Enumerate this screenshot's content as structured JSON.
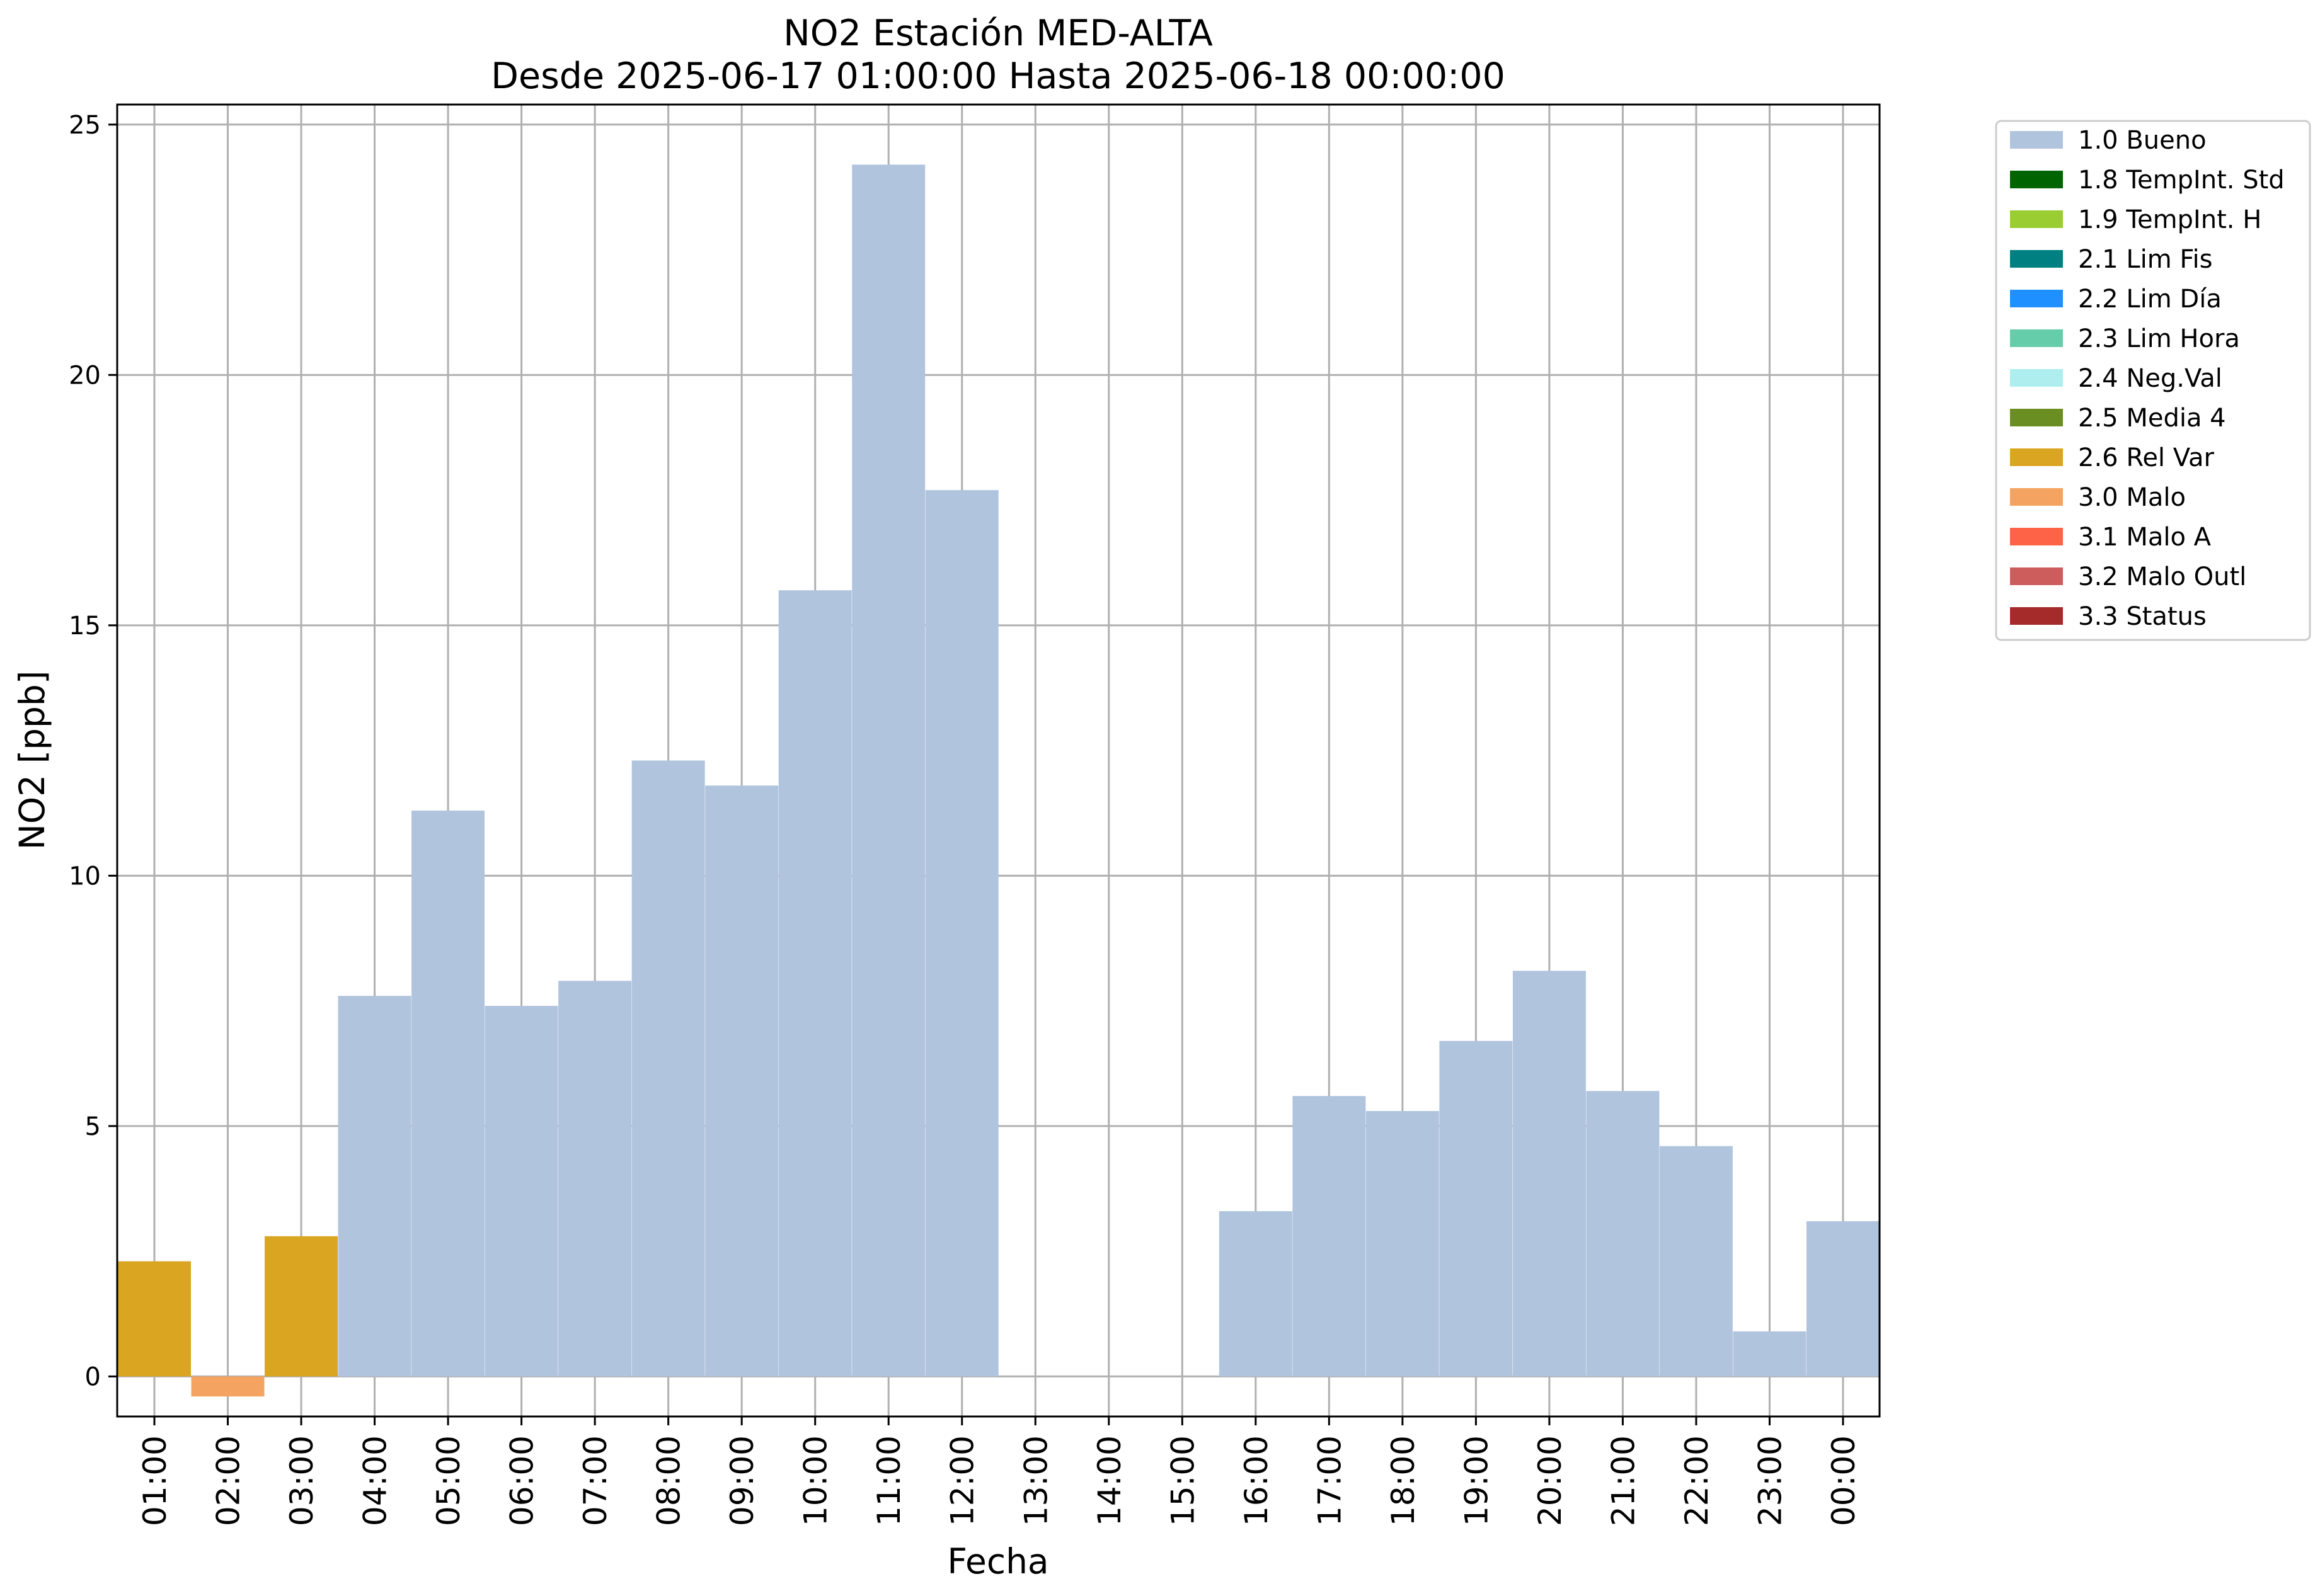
{
  "chart_data": {
    "type": "bar",
    "title": "NO2 Estación MED-ALTA",
    "subtitle": "Desde 2025-06-17 01:00:00 Hasta 2025-06-18 00:00:00",
    "xlabel": "Fecha",
    "ylabel": "NO2 [ppb]",
    "ylim": [
      -0.8,
      25.4
    ],
    "yticks": [
      0,
      5,
      10,
      15,
      20,
      25
    ],
    "grid": true,
    "legend_position": "outside-right",
    "categories": [
      "01:00",
      "02:00",
      "03:00",
      "04:00",
      "05:00",
      "06:00",
      "07:00",
      "08:00",
      "09:00",
      "10:00",
      "11:00",
      "12:00",
      "13:00",
      "14:00",
      "15:00",
      "16:00",
      "17:00",
      "18:00",
      "19:00",
      "20:00",
      "21:00",
      "22:00",
      "23:00",
      "00:00"
    ],
    "values": [
      2.3,
      -0.4,
      2.8,
      7.6,
      11.3,
      7.4,
      7.9,
      12.3,
      11.8,
      15.7,
      24.2,
      17.7,
      null,
      null,
      null,
      3.3,
      5.6,
      5.3,
      6.7,
      8.1,
      5.7,
      4.6,
      0.9,
      3.1
    ],
    "flags": [
      "2.6 Rel Var",
      "3.0 Malo",
      "2.6 Rel Var",
      "1.0 Bueno",
      "1.0 Bueno",
      "1.0 Bueno",
      "1.0 Bueno",
      "1.0 Bueno",
      "1.0 Bueno",
      "1.0 Bueno",
      "1.0 Bueno",
      "1.0 Bueno",
      null,
      null,
      null,
      "1.0 Bueno",
      "1.0 Bueno",
      "1.0 Bueno",
      "1.0 Bueno",
      "1.0 Bueno",
      "1.0 Bueno",
      "1.0 Bueno",
      "1.0 Bueno",
      "1.0 Bueno"
    ],
    "legend": [
      {
        "label": "1.0 Bueno",
        "color": "#b0c4de"
      },
      {
        "label": "1.8 TempInt. Std",
        "color": "#006400"
      },
      {
        "label": "1.9 TempInt. H",
        "color": "#9acd32"
      },
      {
        "label": "2.1 Lim Fis",
        "color": "#008080"
      },
      {
        "label": "2.2 Lim Día",
        "color": "#1e90ff"
      },
      {
        "label": "2.3 Lim Hora",
        "color": "#66cdaa"
      },
      {
        "label": "2.4 Neg.Val",
        "color": "#afeeee"
      },
      {
        "label": "2.5 Media 4",
        "color": "#6b8e23"
      },
      {
        "label": "2.6 Rel Var",
        "color": "#daa520"
      },
      {
        "label": "3.0 Malo",
        "color": "#f4a460"
      },
      {
        "label": "3.1 Malo A",
        "color": "#ff6347"
      },
      {
        "label": "3.2 Malo Outl",
        "color": "#cd5c5c"
      },
      {
        "label": "3.3 Status",
        "color": "#a52a2a"
      }
    ]
  }
}
